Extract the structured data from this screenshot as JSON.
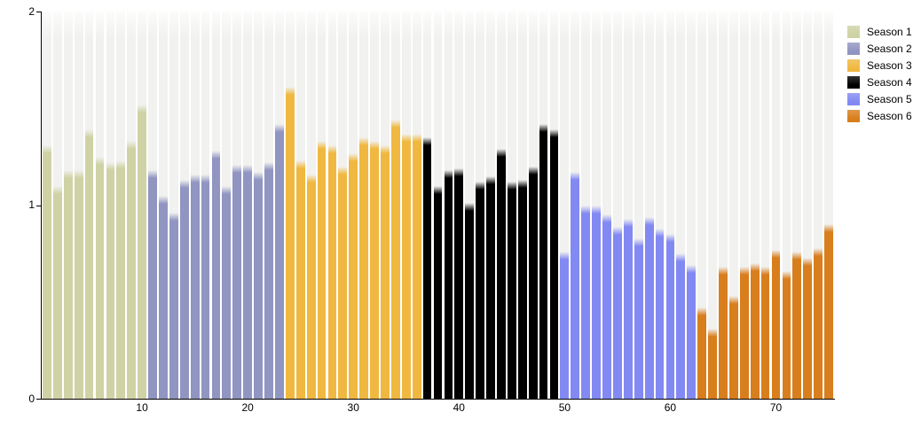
{
  "chart_data": {
    "type": "bar",
    "title": "",
    "xlabel": "",
    "ylabel": "",
    "ylim": [
      0,
      2
    ],
    "yticks": [
      0,
      1,
      2
    ],
    "xticks": [
      10,
      20,
      30,
      40,
      50,
      60,
      70
    ],
    "x_is_cumulative_episode_index": true,
    "total_bars": 75,
    "grid": "off",
    "background_stripes": true,
    "legend_position": "top-right",
    "series": [
      {
        "name": "Season 1",
        "color": "#cfd2a4",
        "values": [
          1.31,
          1.1,
          1.18,
          1.18,
          1.39,
          1.25,
          1.22,
          1.23,
          1.33,
          1.52
        ]
      },
      {
        "name": "Season 2",
        "color": "#9195c1",
        "values": [
          1.18,
          1.05,
          0.96,
          1.13,
          1.16,
          1.16,
          1.28,
          1.1,
          1.21,
          1.21,
          1.17,
          1.22,
          1.42
        ]
      },
      {
        "name": "Season 3",
        "color": "#f0b840",
        "values": [
          1.61,
          1.23,
          1.16,
          1.33,
          1.31,
          1.2,
          1.27,
          1.35,
          1.33,
          1.31,
          1.44,
          1.37,
          1.37
        ]
      },
      {
        "name": "Season 4",
        "color": "#000000",
        "values": [
          1.35,
          1.1,
          1.18,
          1.19,
          1.01,
          1.12,
          1.15,
          1.29,
          1.12,
          1.13,
          1.2,
          1.42,
          1.39
        ]
      },
      {
        "name": "Season 5",
        "color": "#8389f2",
        "values": [
          0.76,
          1.17,
          1.0,
          1.0,
          0.95,
          0.89,
          0.93,
          0.83,
          0.94,
          0.88,
          0.85,
          0.75,
          0.69
        ]
      },
      {
        "name": "Season 6",
        "color": "#d87e1d",
        "values": [
          0.47,
          0.36,
          0.68,
          0.53,
          0.68,
          0.7,
          0.68,
          0.77,
          0.66,
          0.76,
          0.73,
          0.78,
          0.9
        ]
      }
    ]
  },
  "colors": {
    "stripe": "#f1f1ef",
    "axis": "#000000",
    "background": "#ffffff"
  }
}
